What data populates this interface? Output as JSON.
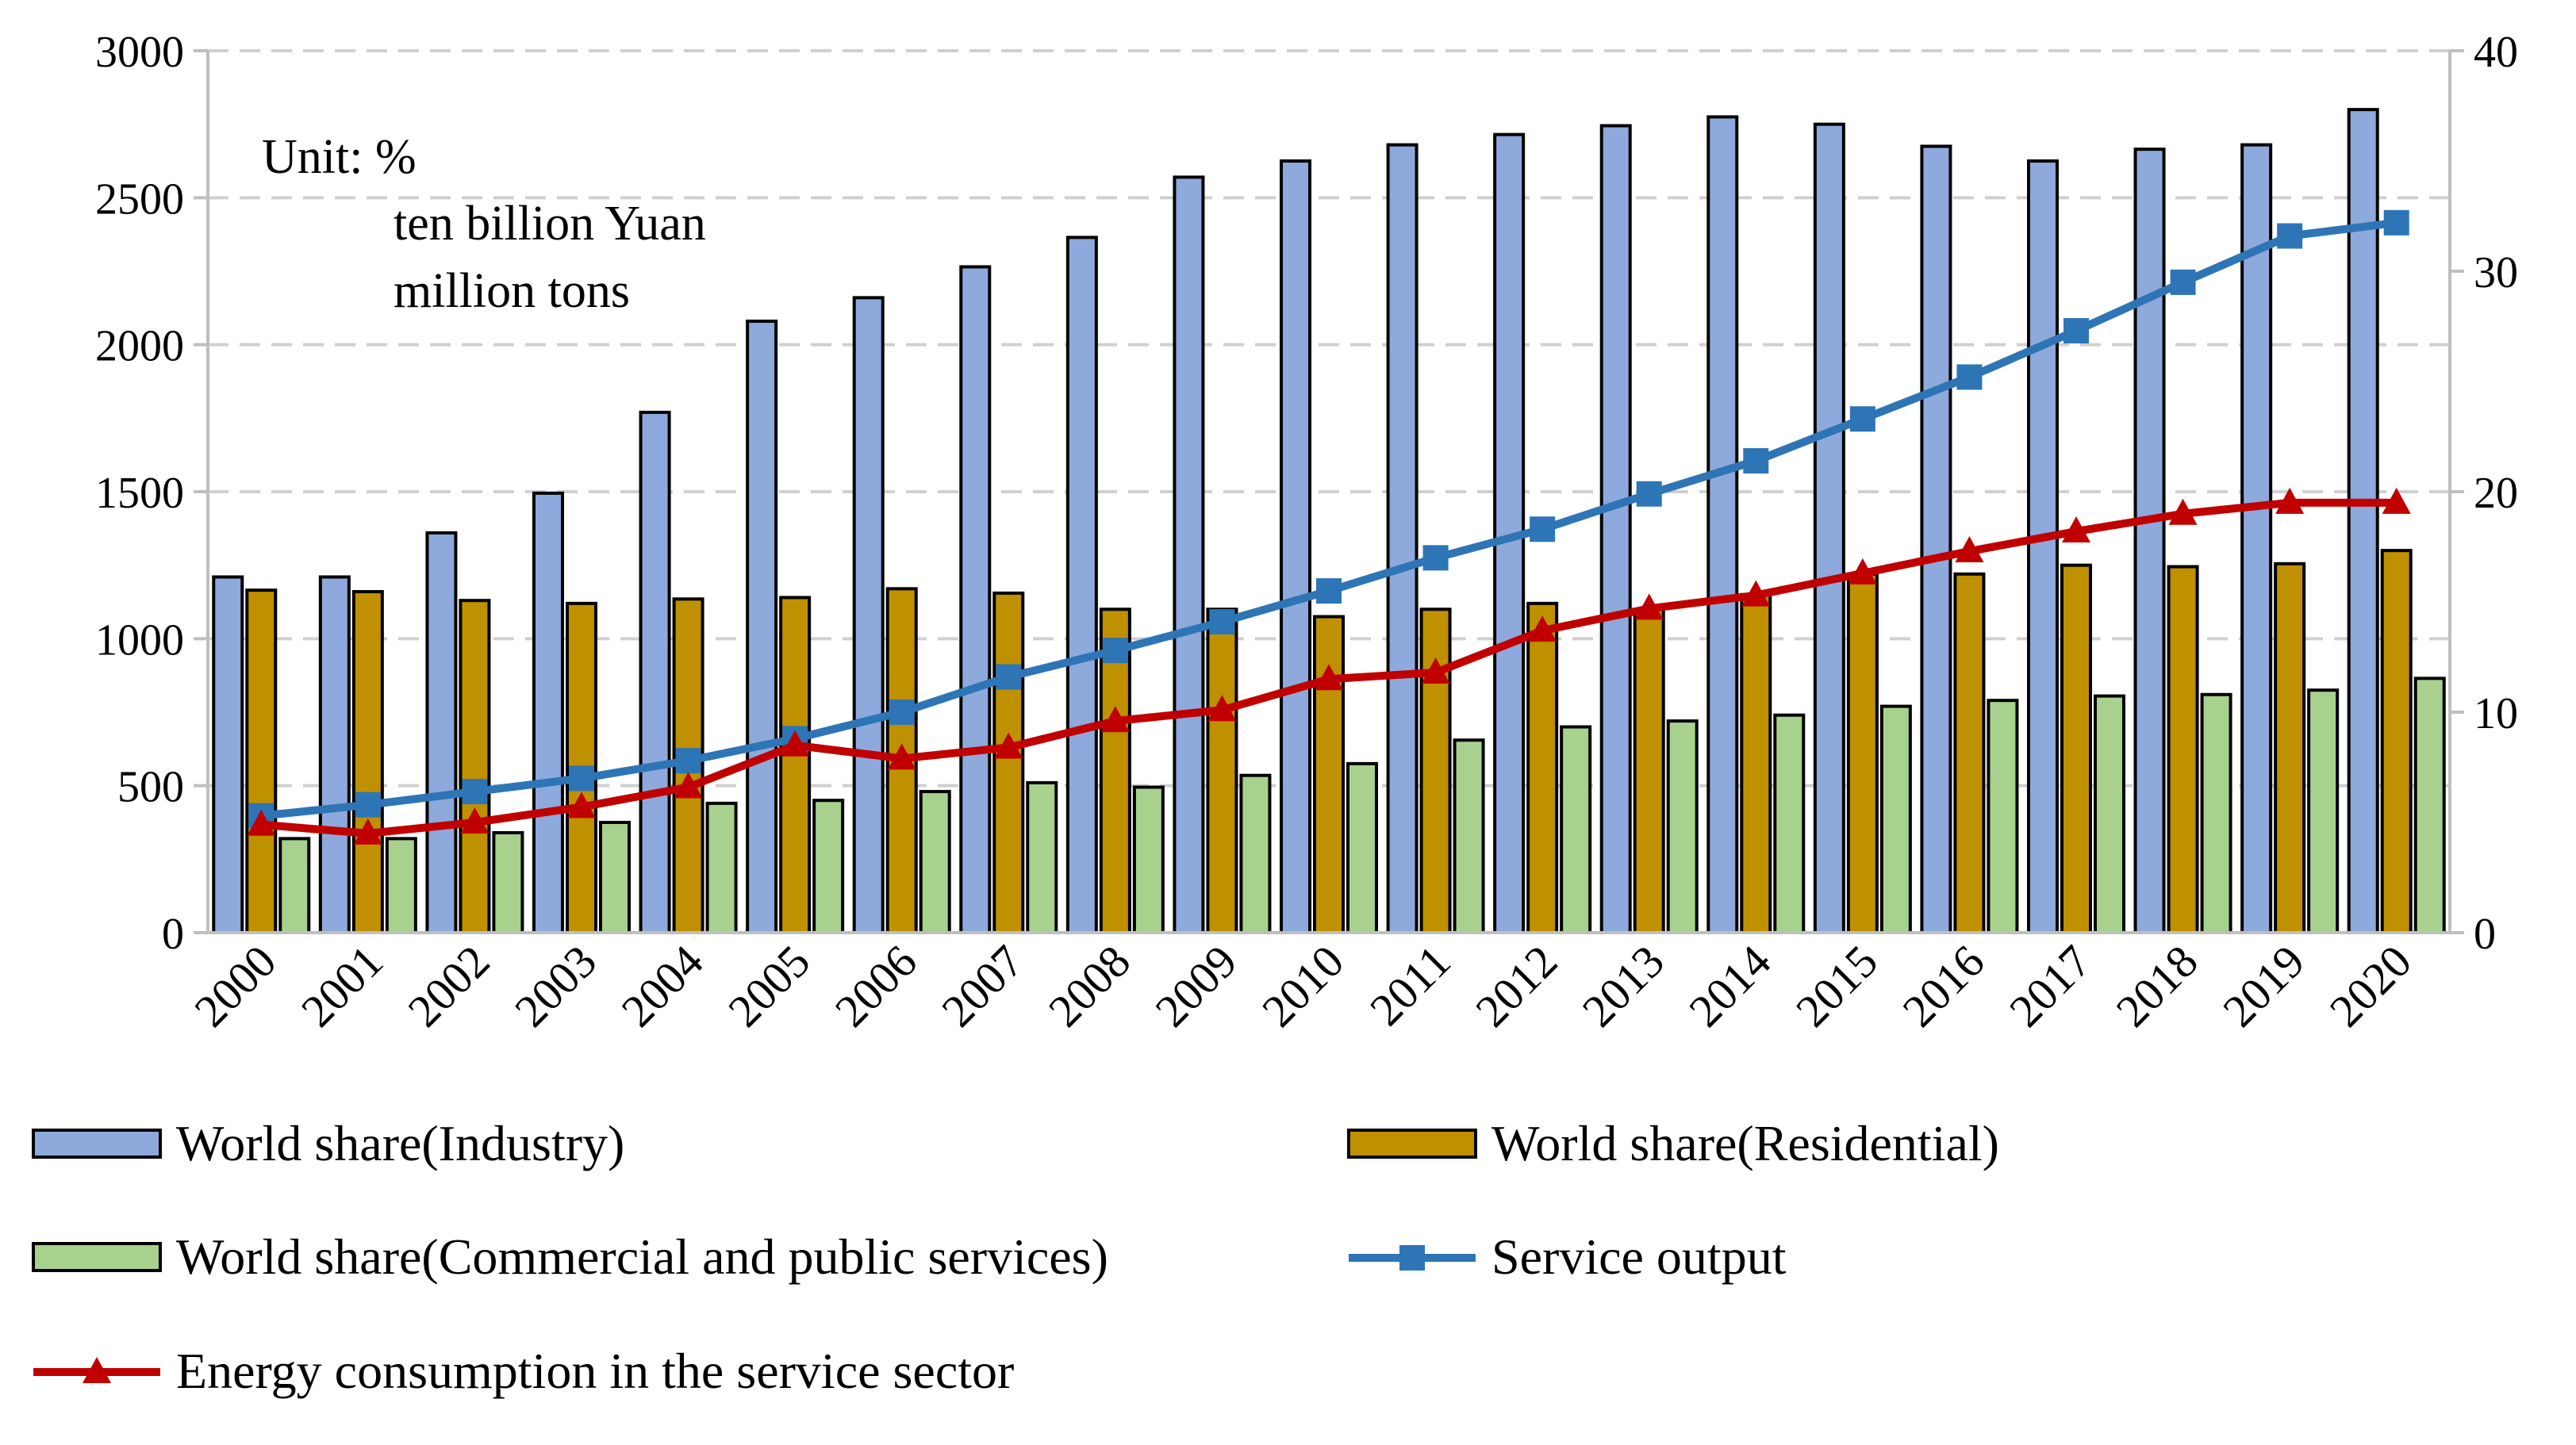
{
  "chart_data": {
    "type": "bar",
    "unit_note": [
      "Unit: %",
      "ten billion Yuan",
      "million tons"
    ],
    "categories": [
      "2000",
      "2001",
      "2002",
      "2003",
      "2004",
      "2005",
      "2006",
      "2007",
      "2008",
      "2009",
      "2010",
      "2011",
      "2012",
      "2013",
      "2014",
      "2015",
      "2016",
      "2017",
      "2018",
      "2019",
      "2020"
    ],
    "left_axis": {
      "ylim": [
        0,
        3000
      ],
      "ticks": [
        0,
        500,
        1000,
        1500,
        2000,
        2500,
        3000
      ]
    },
    "right_axis": {
      "ylim": [
        0,
        40
      ],
      "ticks": [
        0,
        10,
        20,
        30,
        40
      ]
    },
    "grid": "horizontal dashed",
    "series": [
      {
        "name": "World share(Industry)",
        "kind": "bar",
        "axis": "left",
        "color": "#8EA9DB",
        "values": [
          1210,
          1210,
          1360,
          1495,
          1770,
          2080,
          2160,
          2265,
          2365,
          2570,
          2625,
          2680,
          2715,
          2745,
          2775,
          2750,
          2675,
          2625,
          2665,
          2680,
          2800
        ]
      },
      {
        "name": "World share(Residential)",
        "kind": "bar",
        "axis": "left",
        "color": "#BF9000",
        "values": [
          1165,
          1160,
          1130,
          1120,
          1135,
          1140,
          1170,
          1155,
          1100,
          1100,
          1075,
          1100,
          1120,
          1100,
          1150,
          1220,
          1220,
          1250,
          1245,
          1255,
          1300
        ]
      },
      {
        "name": "World share(Commercial and public services)",
        "kind": "bar",
        "axis": "left",
        "color": "#A9D18E",
        "values": [
          320,
          320,
          340,
          375,
          440,
          450,
          480,
          510,
          495,
          535,
          575,
          655,
          700,
          720,
          740,
          770,
          790,
          805,
          810,
          825,
          865
        ]
      },
      {
        "name": "Service output",
        "kind": "line",
        "marker": "square",
        "axis": "right",
        "color": "#2E75B6",
        "values": [
          5.3,
          5.8,
          6.4,
          7.0,
          7.8,
          8.8,
          10.0,
          11.6,
          12.8,
          14.1,
          15.5,
          17.0,
          18.3,
          19.9,
          21.4,
          23.3,
          25.2,
          27.3,
          29.5,
          31.6,
          32.2
        ]
      },
      {
        "name": "Energy consumption in the service sector",
        "kind": "line",
        "marker": "triangle",
        "axis": "right",
        "color": "#C00000",
        "values": [
          4.9,
          4.5,
          5.0,
          5.7,
          6.6,
          8.5,
          7.9,
          8.4,
          9.6,
          10.1,
          11.5,
          11.8,
          13.7,
          14.7,
          15.3,
          16.3,
          17.3,
          18.2,
          19.0,
          19.5,
          19.5
        ]
      }
    ],
    "legend_position": "bottom"
  }
}
